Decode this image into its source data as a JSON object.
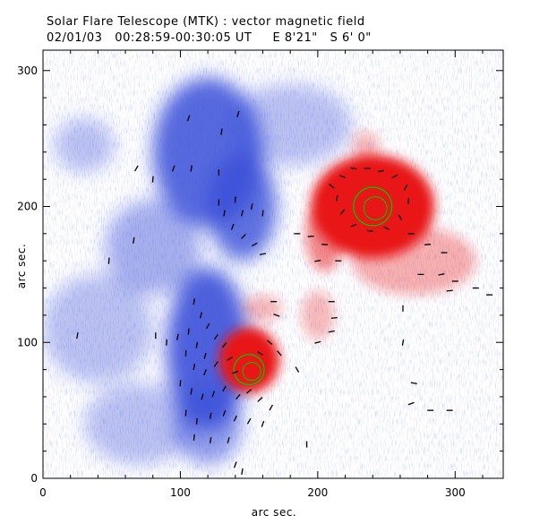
{
  "header": {
    "title": "Solar Flare Telescope (MTK) : vector magnetic field",
    "subtitle_date": "02/01/03",
    "subtitle_time": "00:28:59-00:30:05 UT",
    "subtitle_pos": "E 8'21\"   S 6' 0\""
  },
  "chart_data": {
    "type": "heatmap",
    "title": "Solar Flare Telescope (MTK) : vector magnetic field",
    "xlabel": "arc sec.",
    "ylabel": "arc sec.",
    "xlim": [
      0,
      335
    ],
    "ylim": [
      0,
      315
    ],
    "x_ticks": [
      "0",
      "100",
      "200",
      "300"
    ],
    "y_ticks": [
      "0",
      "100",
      "200",
      "300"
    ],
    "colors": {
      "negative_polarity": "#3a4fd8",
      "positive_polarity": "#e81818",
      "transverse_vectors": "#000000",
      "contours": "#00c800"
    },
    "positive_regions": [
      {
        "x": 240,
        "y": 200,
        "rx": 45,
        "ry": 38,
        "strength": 1.0
      },
      {
        "x": 150,
        "y": 87,
        "rx": 22,
        "ry": 24,
        "strength": 1.0
      },
      {
        "x": 270,
        "y": 160,
        "rx": 45,
        "ry": 25,
        "strength": 0.35
      },
      {
        "x": 205,
        "y": 180,
        "rx": 14,
        "ry": 28,
        "strength": 0.5
      },
      {
        "x": 200,
        "y": 120,
        "rx": 12,
        "ry": 18,
        "strength": 0.3
      },
      {
        "x": 160,
        "y": 125,
        "rx": 14,
        "ry": 10,
        "strength": 0.3
      },
      {
        "x": 235,
        "y": 245,
        "rx": 10,
        "ry": 10,
        "strength": 0.3
      }
    ],
    "negative_regions": [
      {
        "x": 120,
        "y": 240,
        "rx": 40,
        "ry": 55,
        "strength": 0.85
      },
      {
        "x": 145,
        "y": 200,
        "rx": 25,
        "ry": 40,
        "strength": 0.8
      },
      {
        "x": 120,
        "y": 95,
        "rx": 30,
        "ry": 60,
        "strength": 0.9
      },
      {
        "x": 80,
        "y": 170,
        "rx": 35,
        "ry": 35,
        "strength": 0.45
      },
      {
        "x": 40,
        "y": 110,
        "rx": 40,
        "ry": 40,
        "strength": 0.35
      },
      {
        "x": 70,
        "y": 40,
        "rx": 40,
        "ry": 30,
        "strength": 0.35
      },
      {
        "x": 180,
        "y": 260,
        "rx": 45,
        "ry": 30,
        "strength": 0.35
      },
      {
        "x": 30,
        "y": 245,
        "rx": 22,
        "ry": 20,
        "strength": 0.35
      },
      {
        "x": 120,
        "y": 40,
        "rx": 25,
        "ry": 30,
        "strength": 0.55
      }
    ],
    "contours": [
      {
        "x": 240,
        "y": 200,
        "r": 14
      },
      {
        "x": 150,
        "y": 80,
        "r": 11
      }
    ],
    "vectors": [
      {
        "x": 106,
        "y": 265,
        "a": 70
      },
      {
        "x": 130,
        "y": 255,
        "a": 80
      },
      {
        "x": 142,
        "y": 268,
        "a": 75
      },
      {
        "x": 68,
        "y": 228,
        "a": 60
      },
      {
        "x": 80,
        "y": 220,
        "a": 85
      },
      {
        "x": 95,
        "y": 228,
        "a": 70
      },
      {
        "x": 108,
        "y": 228,
        "a": 80
      },
      {
        "x": 128,
        "y": 225,
        "a": 90
      },
      {
        "x": 128,
        "y": 203,
        "a": 88
      },
      {
        "x": 132,
        "y": 195,
        "a": 80
      },
      {
        "x": 140,
        "y": 205,
        "a": 85
      },
      {
        "x": 145,
        "y": 195,
        "a": 75
      },
      {
        "x": 152,
        "y": 200,
        "a": 80
      },
      {
        "x": 160,
        "y": 195,
        "a": 85
      },
      {
        "x": 138,
        "y": 185,
        "a": 70
      },
      {
        "x": 146,
        "y": 178,
        "a": 45
      },
      {
        "x": 154,
        "y": 172,
        "a": 30
      },
      {
        "x": 160,
        "y": 165,
        "a": 10
      },
      {
        "x": 66,
        "y": 175,
        "a": 80
      },
      {
        "x": 48,
        "y": 160,
        "a": 85
      },
      {
        "x": 185,
        "y": 180,
        "a": 0
      },
      {
        "x": 195,
        "y": 178,
        "a": 5
      },
      {
        "x": 205,
        "y": 172,
        "a": -5
      },
      {
        "x": 200,
        "y": 160,
        "a": 10
      },
      {
        "x": 215,
        "y": 160,
        "a": 0
      },
      {
        "x": 210,
        "y": 215,
        "a": -40
      },
      {
        "x": 218,
        "y": 222,
        "a": -20
      },
      {
        "x": 226,
        "y": 228,
        "a": -10
      },
      {
        "x": 236,
        "y": 228,
        "a": 0
      },
      {
        "x": 246,
        "y": 226,
        "a": 10
      },
      {
        "x": 256,
        "y": 222,
        "a": 30
      },
      {
        "x": 264,
        "y": 214,
        "a": 60
      },
      {
        "x": 266,
        "y": 204,
        "a": 85
      },
      {
        "x": 260,
        "y": 192,
        "a": 120
      },
      {
        "x": 250,
        "y": 184,
        "a": 150
      },
      {
        "x": 238,
        "y": 182,
        "a": 170
      },
      {
        "x": 226,
        "y": 186,
        "a": -160
      },
      {
        "x": 218,
        "y": 196,
        "a": -130
      },
      {
        "x": 214,
        "y": 206,
        "a": -100
      },
      {
        "x": 268,
        "y": 180,
        "a": 0
      },
      {
        "x": 280,
        "y": 172,
        "a": 5
      },
      {
        "x": 292,
        "y": 166,
        "a": 0
      },
      {
        "x": 275,
        "y": 150,
        "a": 0
      },
      {
        "x": 290,
        "y": 150,
        "a": 10
      },
      {
        "x": 300,
        "y": 145,
        "a": 0
      },
      {
        "x": 315,
        "y": 140,
        "a": 0
      },
      {
        "x": 325,
        "y": 135,
        "a": 0
      },
      {
        "x": 296,
        "y": 138,
        "a": 5
      },
      {
        "x": 110,
        "y": 130,
        "a": 80
      },
      {
        "x": 115,
        "y": 120,
        "a": 75
      },
      {
        "x": 120,
        "y": 112,
        "a": 60
      },
      {
        "x": 126,
        "y": 104,
        "a": 55
      },
      {
        "x": 132,
        "y": 98,
        "a": 50
      },
      {
        "x": 106,
        "y": 108,
        "a": 85
      },
      {
        "x": 112,
        "y": 98,
        "a": 80
      },
      {
        "x": 118,
        "y": 90,
        "a": 75
      },
      {
        "x": 82,
        "y": 105,
        "a": 90
      },
      {
        "x": 90,
        "y": 100,
        "a": 85
      },
      {
        "x": 98,
        "y": 104,
        "a": 80
      },
      {
        "x": 104,
        "y": 92,
        "a": 88
      },
      {
        "x": 110,
        "y": 82,
        "a": 80
      },
      {
        "x": 118,
        "y": 78,
        "a": 70
      },
      {
        "x": 126,
        "y": 84,
        "a": 55
      },
      {
        "x": 136,
        "y": 88,
        "a": 30
      },
      {
        "x": 140,
        "y": 78,
        "a": 20
      },
      {
        "x": 100,
        "y": 70,
        "a": 85
      },
      {
        "x": 108,
        "y": 64,
        "a": 80
      },
      {
        "x": 116,
        "y": 60,
        "a": 75
      },
      {
        "x": 124,
        "y": 62,
        "a": 70
      },
      {
        "x": 132,
        "y": 66,
        "a": 60
      },
      {
        "x": 142,
        "y": 60,
        "a": 50
      },
      {
        "x": 150,
        "y": 64,
        "a": 40
      },
      {
        "x": 158,
        "y": 58,
        "a": 45
      },
      {
        "x": 166,
        "y": 52,
        "a": 60
      },
      {
        "x": 104,
        "y": 48,
        "a": 85
      },
      {
        "x": 112,
        "y": 42,
        "a": 85
      },
      {
        "x": 122,
        "y": 46,
        "a": 80
      },
      {
        "x": 132,
        "y": 48,
        "a": 70
      },
      {
        "x": 140,
        "y": 44,
        "a": 65
      },
      {
        "x": 150,
        "y": 42,
        "a": 60
      },
      {
        "x": 160,
        "y": 40,
        "a": 70
      },
      {
        "x": 110,
        "y": 30,
        "a": 85
      },
      {
        "x": 122,
        "y": 28,
        "a": 80
      },
      {
        "x": 135,
        "y": 28,
        "a": 75
      },
      {
        "x": 140,
        "y": 10,
        "a": 70
      },
      {
        "x": 145,
        "y": 5,
        "a": 80
      },
      {
        "x": 165,
        "y": 100,
        "a": -40
      },
      {
        "x": 158,
        "y": 92,
        "a": -30
      },
      {
        "x": 172,
        "y": 92,
        "a": -50
      },
      {
        "x": 185,
        "y": 80,
        "a": -60
      },
      {
        "x": 210,
        "y": 130,
        "a": 0
      },
      {
        "x": 212,
        "y": 118,
        "a": 5
      },
      {
        "x": 210,
        "y": 108,
        "a": 10
      },
      {
        "x": 200,
        "y": 100,
        "a": 15
      },
      {
        "x": 262,
        "y": 125,
        "a": 90
      },
      {
        "x": 262,
        "y": 100,
        "a": 80
      },
      {
        "x": 268,
        "y": 55,
        "a": 20
      },
      {
        "x": 282,
        "y": 50,
        "a": 0
      },
      {
        "x": 296,
        "y": 50,
        "a": 0
      },
      {
        "x": 270,
        "y": 70,
        "a": -10
      },
      {
        "x": 25,
        "y": 105,
        "a": 80
      },
      {
        "x": 192,
        "y": 25,
        "a": 90
      },
      {
        "x": 170,
        "y": 120,
        "a": -20
      },
      {
        "x": 168,
        "y": 130,
        "a": 0
      }
    ]
  }
}
